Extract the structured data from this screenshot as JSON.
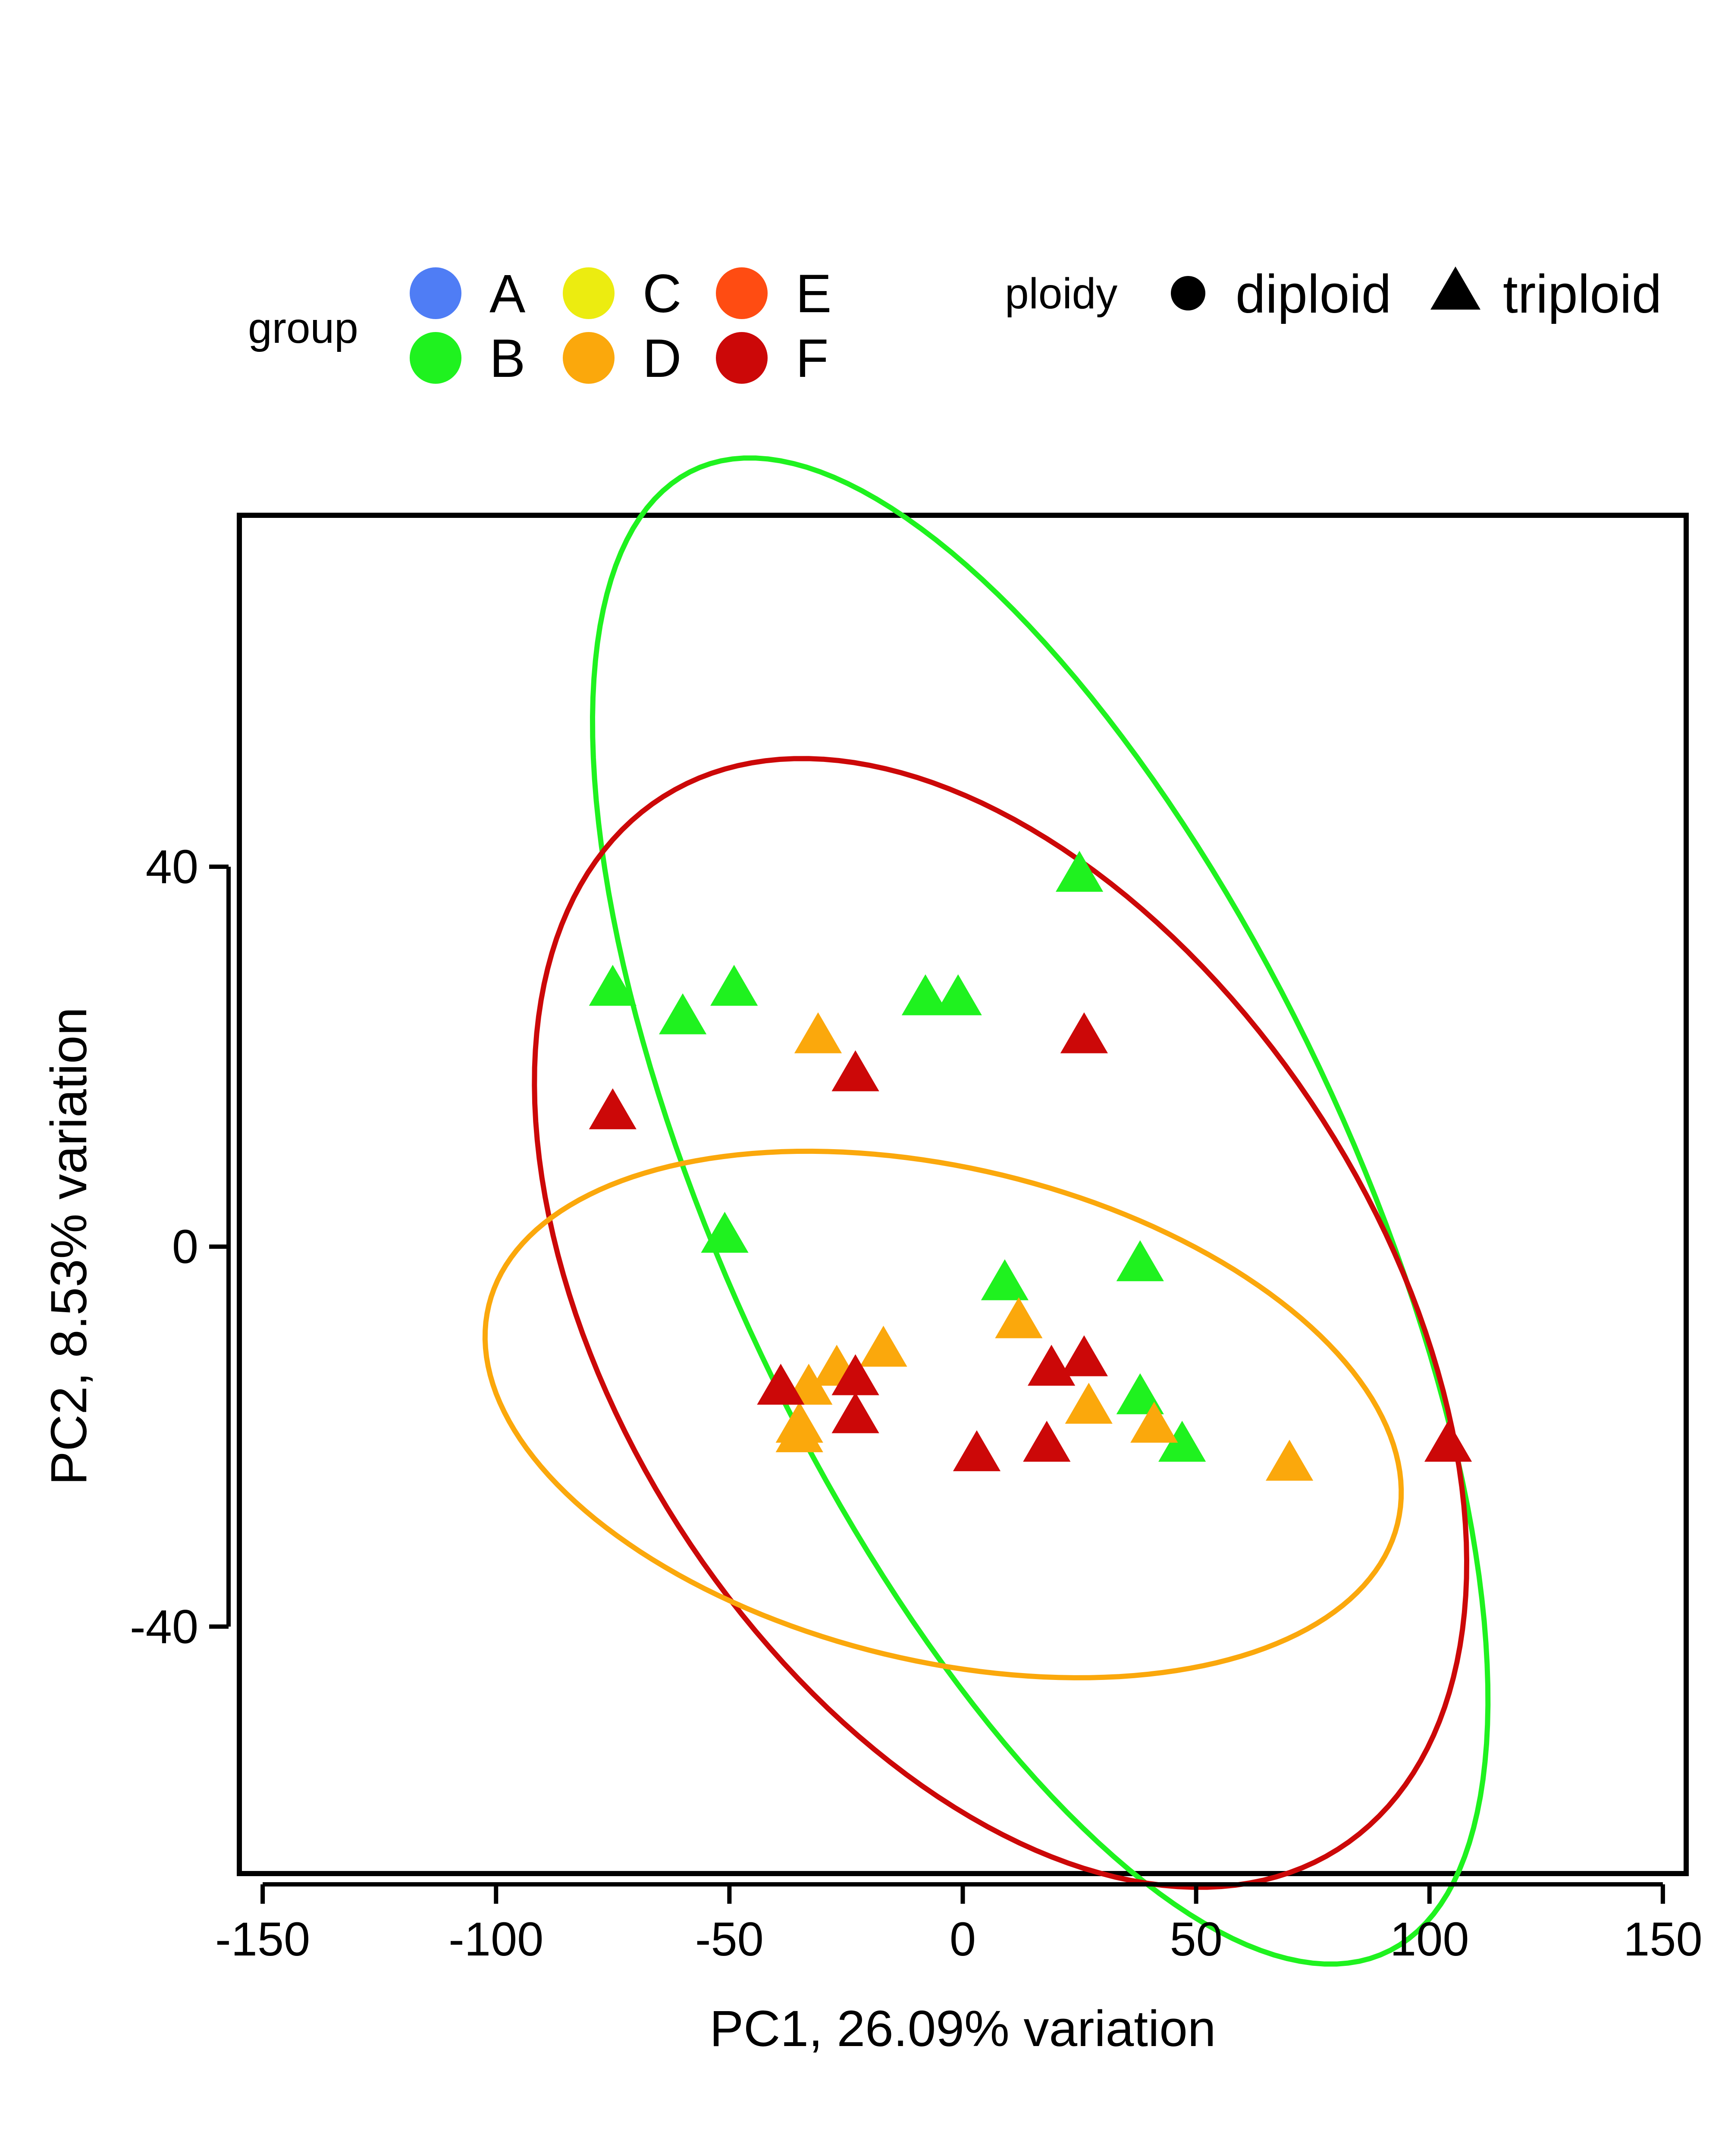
{
  "chart_data": {
    "type": "scatter",
    "xlabel": "PC1, 26.09% variation",
    "ylabel": "PC2, 8.53% variation",
    "xlim": [
      -155,
      155
    ],
    "ylim": [
      -66,
      77
    ],
    "xticks": [
      "-150",
      "-100",
      "-50",
      "0",
      "50",
      "100",
      "150"
    ],
    "yticks": [
      "40",
      "0",
      "-40"
    ],
    "legend": {
      "group_title": "group",
      "groups": [
        {
          "label": "A",
          "color": "#4f7df5"
        },
        {
          "label": "B",
          "color": "#1ff21f"
        },
        {
          "label": "C",
          "color": "#ecec10"
        },
        {
          "label": "D",
          "color": "#fba80c"
        },
        {
          "label": "E",
          "color": "#ff4c12"
        },
        {
          "label": "F",
          "color": "#cc0808"
        }
      ],
      "ploidy_title": "ploidy",
      "ploidy": [
        {
          "label": "diploid",
          "shape": "circle"
        },
        {
          "label": "triploid",
          "shape": "triangle"
        }
      ]
    },
    "series": [
      {
        "group": "B",
        "color": "#1ff21f",
        "shape": "triangle",
        "points": [
          [
            25,
            39
          ],
          [
            -75,
            27
          ],
          [
            -49,
            27
          ],
          [
            -60,
            24
          ],
          [
            -8,
            26
          ],
          [
            -1,
            26
          ],
          [
            -51,
            1
          ],
          [
            9,
            -4
          ],
          [
            38,
            -2
          ],
          [
            38,
            -16
          ],
          [
            47,
            -21
          ]
        ]
      },
      {
        "group": "D",
        "color": "#fba80c",
        "shape": "triangle",
        "points": [
          [
            -31,
            22
          ],
          [
            12,
            -8
          ],
          [
            -17,
            -11
          ],
          [
            -27,
            -13
          ],
          [
            -33,
            -15
          ],
          [
            -35,
            -19
          ],
          [
            -35,
            -20
          ],
          [
            27,
            -17
          ],
          [
            41,
            -19
          ],
          [
            70,
            -23
          ]
        ]
      },
      {
        "group": "F",
        "color": "#cc0808",
        "shape": "triangle",
        "points": [
          [
            -75,
            14
          ],
          [
            -23,
            18
          ],
          [
            26,
            22
          ],
          [
            -39,
            -15
          ],
          [
            -23,
            -14
          ],
          [
            -23,
            -18
          ],
          [
            19,
            -13
          ],
          [
            26,
            -12
          ],
          [
            3,
            -22
          ],
          [
            18,
            -21
          ],
          [
            104,
            -21
          ]
        ]
      }
    ],
    "ellipses": [
      {
        "group": "B",
        "color": "#1ff21f",
        "center": [
          16.6,
          3.75
        ],
        "a": 113.53,
        "b": 50.98,
        "angle_deg": -36.77
      },
      {
        "group": "F",
        "color": "#cc0808",
        "center": [
          8.1,
          -8.03
        ],
        "a": 104.15,
        "b": 51.56,
        "angle_deg": -19.05
      },
      {
        "group": "D",
        "color": "#fba80c",
        "center": [
          -4.2,
          -17.67
        ],
        "a": 98.52,
        "b": 26.38,
        "angle_deg": -5.14
      }
    ]
  }
}
